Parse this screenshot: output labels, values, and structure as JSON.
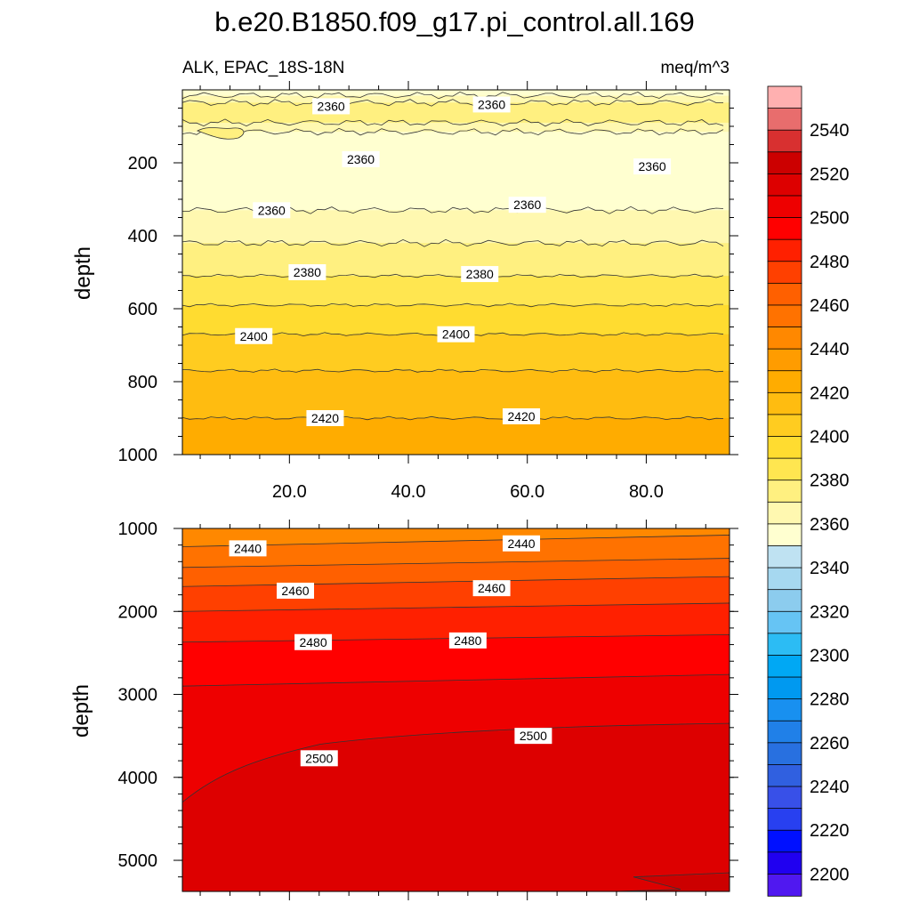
{
  "chart_data": [
    {
      "type": "contour",
      "title": "b.e20.B1850.f09_g17.pi_control.all.169",
      "subtitle_left": "ALK, EPAC_18S-18N",
      "subtitle_right": "meq/m^3",
      "xlabel": "",
      "ylabel": "depth",
      "xlim": [
        2,
        94
      ],
      "ylim": [
        1000,
        0
      ],
      "x_ticks": [
        20,
        40,
        60,
        80
      ],
      "x_tick_labels": [
        "20.0",
        "40.0",
        "60.0",
        "80.0"
      ],
      "y_ticks": [
        200,
        400,
        600,
        800,
        1000
      ],
      "y_tick_labels": [
        "200",
        "400",
        "600",
        "800",
        "1000"
      ],
      "contour_interval": 10,
      "bands": [
        {
          "lower": 2360,
          "upper": 2370,
          "depth_range": [
            0,
            35
          ]
        },
        {
          "lower": 2350,
          "upper": 2360,
          "depth_range": [
            0,
            15
          ]
        },
        {
          "lower": 2370,
          "upper": 2380,
          "depth_range": [
            35,
            90
          ]
        },
        {
          "lower": 2360,
          "upper": 2370,
          "depth_range": [
            90,
            115
          ]
        },
        {
          "lower": 2350,
          "upper": 2360,
          "depth_range": [
            115,
            330
          ]
        },
        {
          "lower": 2360,
          "upper": 2370,
          "depth_range": [
            330,
            420
          ]
        },
        {
          "lower": 2370,
          "upper": 2380,
          "depth_range": [
            420,
            510
          ]
        },
        {
          "lower": 2380,
          "upper": 2390,
          "depth_range": [
            510,
            590
          ]
        },
        {
          "lower": 2390,
          "upper": 2400,
          "depth_range": [
            590,
            670
          ]
        },
        {
          "lower": 2400,
          "upper": 2410,
          "depth_range": [
            670,
            770
          ]
        },
        {
          "lower": 2410,
          "upper": 2420,
          "depth_range": [
            770,
            900
          ]
        },
        {
          "lower": 2420,
          "upper": 2430,
          "depth_range": [
            900,
            1000
          ]
        }
      ],
      "contour_labels": [
        {
          "value": "2360",
          "x": 27,
          "depth": 45
        },
        {
          "value": "2360",
          "x": 54,
          "depth": 40
        },
        {
          "value": "2360",
          "x": 32,
          "depth": 190
        },
        {
          "value": "2360",
          "x": 81,
          "depth": 210
        },
        {
          "value": "2360",
          "x": 17,
          "depth": 330
        },
        {
          "value": "2360",
          "x": 60,
          "depth": 315
        },
        {
          "value": "2380",
          "x": 23,
          "depth": 500
        },
        {
          "value": "2380",
          "x": 52,
          "depth": 505
        },
        {
          "value": "2400",
          "x": 14,
          "depth": 675
        },
        {
          "value": "2400",
          "x": 48,
          "depth": 670
        },
        {
          "value": "2420",
          "x": 26,
          "depth": 900
        },
        {
          "value": "2420",
          "x": 59,
          "depth": 895
        }
      ]
    },
    {
      "type": "contour",
      "xlabel": "",
      "ylabel": "depth",
      "xlim": [
        2,
        94
      ],
      "ylim": [
        5375,
        1000
      ],
      "x_ticks": [
        20,
        40,
        60,
        80
      ],
      "y_ticks": [
        1000,
        2000,
        3000,
        4000,
        5000
      ],
      "y_tick_labels": [
        "1000",
        "2000",
        "3000",
        "4000",
        "5000"
      ],
      "contour_interval": 10,
      "contour_labels": [
        {
          "value": "2440",
          "x": 13,
          "depth": 1240
        },
        {
          "value": "2440",
          "x": 59,
          "depth": 1180
        },
        {
          "value": "2460",
          "x": 21,
          "depth": 1750
        },
        {
          "value": "2460",
          "x": 54,
          "depth": 1720
        },
        {
          "value": "2480",
          "x": 24,
          "depth": 2370
        },
        {
          "value": "2480",
          "x": 50,
          "depth": 2350
        },
        {
          "value": "2500",
          "x": 25,
          "depth": 3770
        },
        {
          "value": "2500",
          "x": 61,
          "depth": 3500
        }
      ]
    }
  ],
  "colorbar": {
    "labels": [
      "2540",
      "2520",
      "2500",
      "2480",
      "2460",
      "2440",
      "2420",
      "2400",
      "2380",
      "2360",
      "2340",
      "2320",
      "2300",
      "2280",
      "2260",
      "2240",
      "2220",
      "2200"
    ],
    "label_values": [
      2540,
      2520,
      2500,
      2480,
      2460,
      2440,
      2420,
      2400,
      2380,
      2360,
      2340,
      2320,
      2300,
      2280,
      2260,
      2240,
      2220,
      2200
    ],
    "min": 2190,
    "max": 2560,
    "step": 10,
    "colors_high_to_low": [
      "#ffb0b0",
      "#e86d6d",
      "#d83030",
      "#cc0000",
      "#dd0000",
      "#ee0000",
      "#ff0000",
      "#ff2000",
      "#ff4000",
      "#ff6000",
      "#ff7200",
      "#ff8800",
      "#ff9c00",
      "#ffac00",
      "#ffbc10",
      "#ffcc20",
      "#ffdc30",
      "#ffe650",
      "#fff080",
      "#fff8b0",
      "#ffffd0",
      "#bfe2f2",
      "#a6d8f0",
      "#8cccee",
      "#66c4f4",
      "#2cbcf4",
      "#00a8f4",
      "#0099f0",
      "#1890f0",
      "#2080e8",
      "#2870e0",
      "#3060e0",
      "#3850e8",
      "#2840f0",
      "#0010ff",
      "#2000f0",
      "#5018f0"
    ]
  }
}
